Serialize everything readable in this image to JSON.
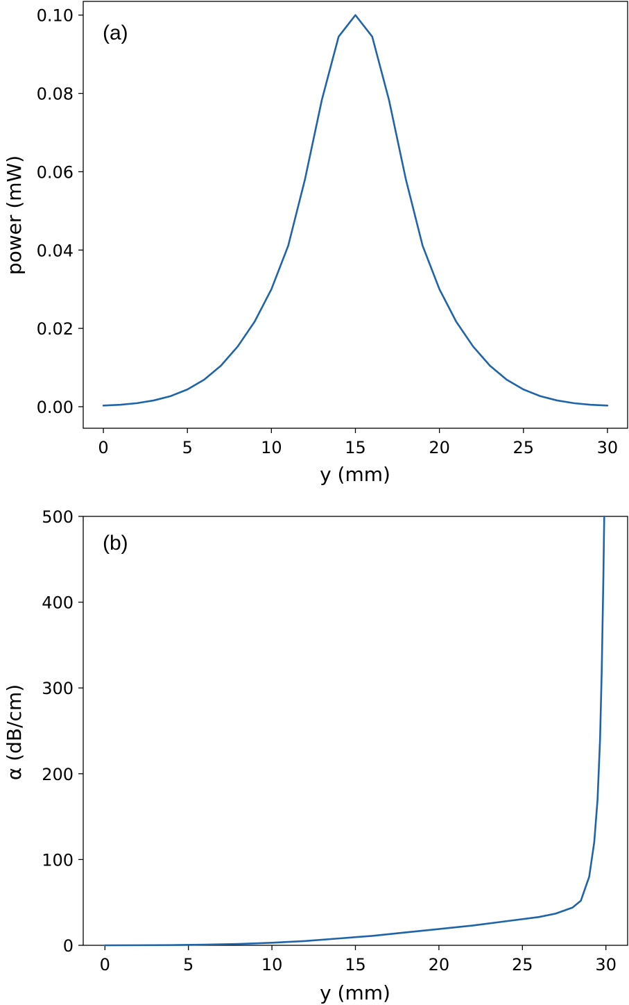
{
  "chart_data": [
    {
      "type": "line",
      "panel_label": "(a)",
      "xlabel": "y (mm)",
      "ylabel": "power (mW)",
      "xlim": [
        -1.2,
        31.2
      ],
      "ylim": [
        -0.0055,
        0.1035
      ],
      "xticks": [
        0,
        5,
        10,
        15,
        20,
        25,
        30
      ],
      "xtick_labels": [
        "0",
        "5",
        "10",
        "15",
        "20",
        "25",
        "30"
      ],
      "yticks": [
        0.0,
        0.02,
        0.04,
        0.06,
        0.08,
        0.1
      ],
      "ytick_labels": [
        "0.00",
        "0.02",
        "0.04",
        "0.06",
        "0.08",
        "0.10"
      ],
      "grid": false,
      "color": "#1f63a8",
      "series": [
        {
          "x": [
            0,
            1,
            2,
            3,
            4,
            5,
            6,
            7,
            8,
            9,
            10,
            11,
            12,
            13,
            14,
            15,
            16,
            17,
            18,
            19,
            20,
            21,
            22,
            23,
            24,
            25,
            26,
            27,
            28,
            29,
            30
          ],
          "values": [
            0.0003,
            0.0005,
            0.0009,
            0.0016,
            0.0027,
            0.0044,
            0.0069,
            0.0105,
            0.0154,
            0.0217,
            0.03,
            0.0411,
            0.0581,
            0.0783,
            0.0945,
            0.1,
            0.0945,
            0.0783,
            0.0581,
            0.0411,
            0.03,
            0.0217,
            0.0154,
            0.0105,
            0.0069,
            0.0044,
            0.0027,
            0.0016,
            0.0009,
            0.0005,
            0.0003
          ]
        }
      ]
    },
    {
      "type": "line",
      "panel_label": "(b)",
      "xlabel": "y (mm)",
      "ylabel": "α (dB/cm)",
      "xlim": [
        -1.3,
        31.3
      ],
      "ylim": [
        0,
        500
      ],
      "xticks": [
        0,
        5,
        10,
        15,
        20,
        25,
        30
      ],
      "xtick_labels": [
        "0",
        "5",
        "10",
        "15",
        "20",
        "25",
        "30"
      ],
      "yticks": [
        0,
        100,
        200,
        300,
        400,
        500
      ],
      "ytick_labels": [
        "0",
        "100",
        "200",
        "300",
        "400",
        "500"
      ],
      "grid": false,
      "color": "#1f63a8",
      "series": [
        {
          "x": [
            0,
            2,
            4,
            6,
            8,
            10,
            12,
            14,
            16,
            18,
            20,
            22,
            24,
            26,
            27,
            28,
            28.5,
            29,
            29.3,
            29.5,
            29.65,
            29.75,
            29.85,
            29.9
          ],
          "values": [
            0,
            0.1,
            0.3,
            0.8,
            1.6,
            3,
            5,
            8,
            11,
            15,
            19,
            23,
            28,
            33,
            37,
            44,
            52,
            80,
            120,
            170,
            240,
            320,
            430,
            500
          ]
        }
      ]
    }
  ]
}
